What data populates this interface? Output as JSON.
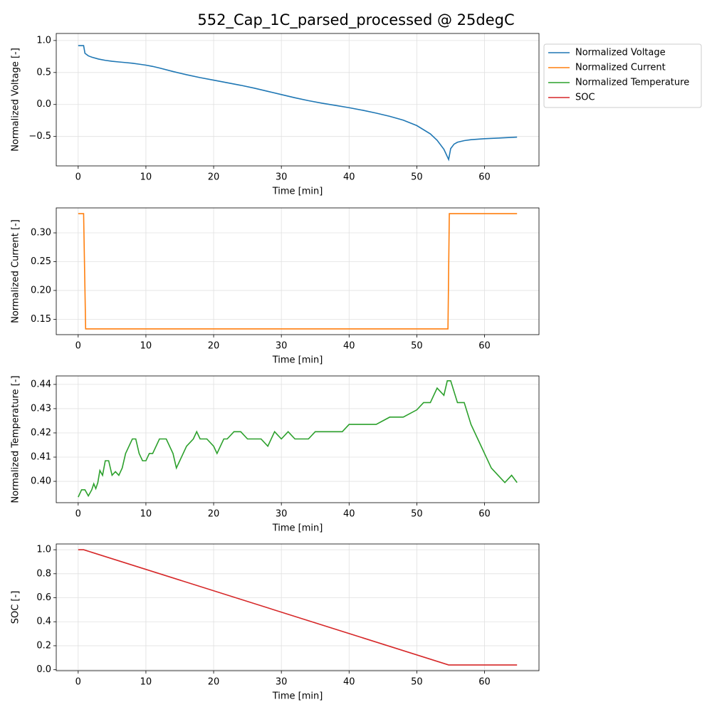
{
  "title": "552_Cap_1C_parsed_processed @ 25degC",
  "chart_data": [
    {
      "type": "line",
      "xlabel": "Time [min]",
      "ylabel": "Normalized Voltage [-]",
      "grid": true,
      "legend": "outside upper right",
      "x": [
        0,
        0.8,
        1.0,
        1.5,
        2,
        3,
        4,
        5,
        6,
        7,
        8,
        9,
        10,
        11,
        12,
        14,
        16,
        18,
        20,
        22,
        24,
        26,
        28,
        30,
        32,
        34,
        36,
        38,
        40,
        42,
        44,
        46,
        48,
        50,
        52,
        53,
        54,
        54.7,
        55,
        55.5,
        56,
        57,
        58,
        60,
        62,
        64.8
      ],
      "series": [
        {
          "name": "Normalized Voltage",
          "color": "#1f77b4",
          "values": [
            0.92,
            0.92,
            0.8,
            0.76,
            0.74,
            0.71,
            0.69,
            0.675,
            0.665,
            0.655,
            0.645,
            0.63,
            0.615,
            0.595,
            0.57,
            0.515,
            0.465,
            0.42,
            0.38,
            0.34,
            0.3,
            0.255,
            0.205,
            0.155,
            0.105,
            0.06,
            0.02,
            -0.015,
            -0.05,
            -0.09,
            -0.135,
            -0.185,
            -0.245,
            -0.33,
            -0.46,
            -0.56,
            -0.7,
            -0.86,
            -0.69,
            -0.62,
            -0.59,
            -0.565,
            -0.55,
            -0.535,
            -0.525,
            -0.51
          ]
        }
      ],
      "xlim": [
        -3.24,
        68.04
      ],
      "xticks": [
        0,
        10,
        20,
        30,
        40,
        50,
        60
      ],
      "ylim": [
        -0.96,
        1.11
      ],
      "yticks": [
        {
          "value": -0.5,
          "label": "−0.5"
        },
        {
          "value": 0,
          "label": "0.0"
        },
        0.5,
        {
          "value": 1,
          "label": "1.0"
        }
      ]
    },
    {
      "type": "line",
      "xlabel": "Time [min]",
      "ylabel": "Normalized Current [-]",
      "grid": true,
      "x": [
        0,
        0.8,
        1.1,
        54.6,
        54.8,
        64.8
      ],
      "series": [
        {
          "name": "Normalized Current",
          "color": "#ff7f0e",
          "values": [
            0.3333,
            0.3333,
            0.1333,
            0.1333,
            0.3333,
            0.3333
          ]
        }
      ],
      "xlim": [
        -3.24,
        68.04
      ],
      "xticks": [
        0,
        10,
        20,
        30,
        40,
        50,
        60
      ],
      "ylim": [
        0.1233,
        0.3433
      ],
      "yticks": [
        0.15,
        {
          "value": 0.2,
          "label": "0.20"
        },
        0.25,
        {
          "value": 0.3,
          "label": "0.30"
        }
      ]
    },
    {
      "type": "line",
      "xlabel": "Time [min]",
      "ylabel": "Normalized Temperature [-]",
      "grid": true,
      "x": [
        0,
        0.5,
        1,
        1.5,
        2,
        2.3,
        2.6,
        2.9,
        3.2,
        3.6,
        4,
        4.5,
        5,
        5.5,
        6,
        6.5,
        7,
        7.5,
        8,
        8.5,
        9,
        9.5,
        10,
        10.5,
        11,
        12,
        12.5,
        13,
        14,
        14.5,
        15,
        15.5,
        16,
        17,
        17.5,
        18,
        19,
        20,
        20.5,
        21,
        21.5,
        22,
        23,
        24,
        25,
        26,
        27,
        28,
        29,
        30,
        31,
        32,
        33,
        34,
        35,
        36,
        37,
        38,
        39,
        40,
        42,
        44,
        46,
        48,
        50,
        51,
        52,
        53,
        54,
        54.5,
        55,
        56,
        57,
        58,
        59,
        60,
        61,
        62,
        63,
        64,
        64.8
      ],
      "series": [
        {
          "name": "Normalized Temperature",
          "color": "#2ca02c",
          "values": [
            0.3935,
            0.3965,
            0.3965,
            0.394,
            0.3965,
            0.399,
            0.397,
            0.3995,
            0.4045,
            0.4025,
            0.4085,
            0.4085,
            0.4025,
            0.404,
            0.4025,
            0.4055,
            0.4115,
            0.4145,
            0.4175,
            0.4175,
            0.4115,
            0.4085,
            0.4085,
            0.4115,
            0.4115,
            0.4175,
            0.4175,
            0.4175,
            0.4115,
            0.4055,
            0.4085,
            0.4115,
            0.4145,
            0.4175,
            0.4205,
            0.4175,
            0.4175,
            0.4145,
            0.4115,
            0.4145,
            0.4175,
            0.4175,
            0.4205,
            0.4205,
            0.4175,
            0.4175,
            0.4175,
            0.4145,
            0.4205,
            0.4175,
            0.4205,
            0.4175,
            0.4175,
            0.4175,
            0.4205,
            0.4205,
            0.4205,
            0.4205,
            0.4205,
            0.4235,
            0.4235,
            0.4235,
            0.4265,
            0.4265,
            0.4295,
            0.4325,
            0.4325,
            0.4385,
            0.4355,
            0.4415,
            0.4415,
            0.4325,
            0.4325,
            0.4235,
            0.4175,
            0.4115,
            0.4055,
            0.4025,
            0.3995,
            0.4025,
            0.3995
          ]
        }
      ],
      "xlim": [
        -3.24,
        68.04
      ],
      "xticks": [
        0,
        10,
        20,
        30,
        40,
        50,
        60
      ],
      "ylim": [
        0.3912,
        0.4435
      ],
      "yticks": [
        {
          "value": 0.4,
          "label": "0.40"
        },
        0.41,
        0.42,
        0.43,
        0.44
      ]
    },
    {
      "type": "line",
      "xlabel": "Time [min]",
      "ylabel": "SOC [-]",
      "grid": true,
      "x": [
        0,
        0.8,
        54.7,
        64.8
      ],
      "series": [
        {
          "name": "SOC",
          "color": "#d62728",
          "values": [
            1.0,
            1.0,
            0.04,
            0.04
          ]
        }
      ],
      "xlim": [
        -3.24,
        68.04
      ],
      "xticks": [
        0,
        10,
        20,
        30,
        40,
        50,
        60
      ],
      "ylim": [
        -0.008,
        1.048
      ],
      "yticks": [
        {
          "value": 0,
          "label": "0.0"
        },
        0.2,
        0.4,
        0.6,
        0.8,
        {
          "value": 1,
          "label": "1.0"
        }
      ]
    }
  ]
}
